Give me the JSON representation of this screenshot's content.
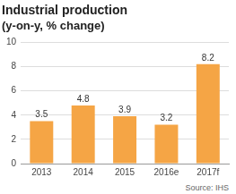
{
  "chart_data": {
    "type": "bar",
    "title": "Industrial production",
    "subtitle": "(y-on-y, % change)",
    "categories": [
      "2013",
      "2014",
      "2015",
      "2016e",
      "2017f"
    ],
    "values": [
      3.5,
      4.8,
      3.9,
      3.2,
      8.2
    ],
    "color": "#f5a545",
    "ylim": [
      0,
      10
    ],
    "yticks": [
      0,
      2,
      4,
      6,
      8,
      10
    ],
    "grid": true,
    "data_labels": true,
    "source": "Source: IHS"
  }
}
